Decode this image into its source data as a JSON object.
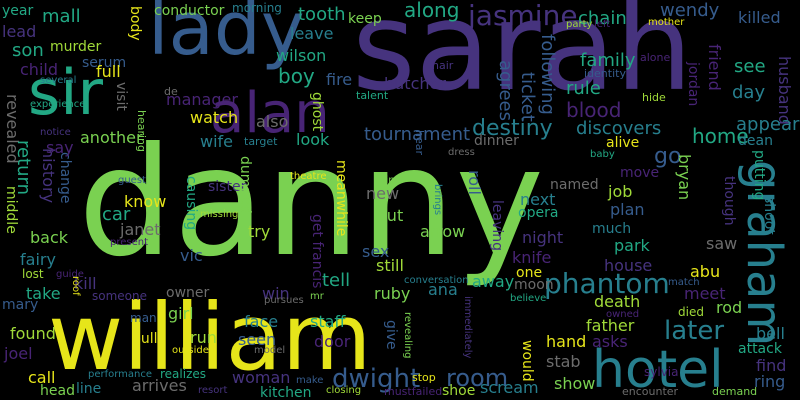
{
  "palette": {
    "green": "#7ad151",
    "yellow": "#e6e51a",
    "purple": "#46337e",
    "violet": "#482475",
    "teal": "#277f8e",
    "blue": "#365c8d",
    "seagreen": "#22a884",
    "lime": "#a0da39",
    "gray": "#6c6c6c"
  },
  "words": [
    {
      "text": "danny"
    },
    {
      "text": "sarah"
    },
    {
      "text": "william"
    },
    {
      "text": "lady"
    },
    {
      "text": "sir"
    },
    {
      "text": "alan"
    },
    {
      "text": "hotel"
    },
    {
      "text": "graham"
    },
    {
      "text": "jasmine"
    },
    {
      "text": "room"
    },
    {
      "text": "phantom"
    },
    {
      "text": "later"
    },
    {
      "text": "dwight"
    },
    {
      "text": "tournament"
    },
    {
      "text": "destiny"
    },
    {
      "text": "discovers"
    },
    {
      "text": "blood"
    },
    {
      "text": "home"
    },
    {
      "text": "go"
    },
    {
      "text": "killed"
    },
    {
      "text": "husband"
    },
    {
      "text": "appears"
    },
    {
      "text": "dean"
    },
    {
      "text": "see"
    },
    {
      "text": "day"
    },
    {
      "text": "friend"
    },
    {
      "text": "jordan"
    },
    {
      "text": "wendy"
    },
    {
      "text": "family"
    },
    {
      "text": "chain"
    },
    {
      "text": "rule"
    },
    {
      "text": "ticket"
    },
    {
      "text": "following"
    },
    {
      "text": "agrees"
    },
    {
      "text": "along"
    },
    {
      "text": "keep"
    },
    {
      "text": "tooth"
    },
    {
      "text": "leave"
    },
    {
      "text": "wilson"
    },
    {
      "text": "butcher"
    },
    {
      "text": "fire"
    },
    {
      "text": "ghost"
    },
    {
      "text": "boy"
    },
    {
      "text": "manager"
    },
    {
      "text": "watch"
    },
    {
      "text": "also"
    },
    {
      "text": "mall"
    },
    {
      "text": "conductor"
    },
    {
      "text": "morning"
    },
    {
      "text": "year"
    },
    {
      "text": "lead"
    },
    {
      "text": "serum"
    },
    {
      "text": "son"
    },
    {
      "text": "murder"
    },
    {
      "text": "child"
    },
    {
      "text": "full"
    },
    {
      "text": "revealed"
    },
    {
      "text": "another"
    },
    {
      "text": "wife"
    },
    {
      "text": "look"
    },
    {
      "text": "return"
    },
    {
      "text": "history"
    },
    {
      "text": "change"
    },
    {
      "text": "middle"
    },
    {
      "text": "say"
    },
    {
      "text": "know"
    },
    {
      "text": "car"
    },
    {
      "text": "janet"
    },
    {
      "text": "back"
    },
    {
      "text": "fairy"
    },
    {
      "text": "causing"
    },
    {
      "text": "sister"
    },
    {
      "text": "vic"
    },
    {
      "text": "try"
    },
    {
      "text": "tell"
    },
    {
      "text": "get francis"
    },
    {
      "text": "meanwhile"
    },
    {
      "text": "new"
    },
    {
      "text": "cut"
    },
    {
      "text": "next"
    },
    {
      "text": "opera"
    },
    {
      "text": "night"
    },
    {
      "text": "plan"
    },
    {
      "text": "job"
    },
    {
      "text": "move"
    },
    {
      "text": "alive"
    },
    {
      "text": "named"
    },
    {
      "text": "arrow"
    },
    {
      "text": "much"
    },
    {
      "text": "park"
    },
    {
      "text": "house"
    },
    {
      "text": "sex"
    },
    {
      "text": "still"
    },
    {
      "text": "knife"
    },
    {
      "text": "one"
    },
    {
      "text": "moon"
    },
    {
      "text": "ruby"
    },
    {
      "text": "ana"
    },
    {
      "text": "away"
    },
    {
      "text": "leaving"
    },
    {
      "text": "roll"
    },
    {
      "text": "death"
    },
    {
      "text": "meet"
    },
    {
      "text": "abu"
    },
    {
      "text": "saw"
    },
    {
      "text": "rod"
    },
    {
      "text": "bell"
    },
    {
      "text": "attack"
    },
    {
      "text": "find"
    },
    {
      "text": "ring"
    },
    {
      "text": "father"
    },
    {
      "text": "asks"
    },
    {
      "text": "hand"
    },
    {
      "text": "stab"
    },
    {
      "text": "show"
    },
    {
      "text": "scream"
    },
    {
      "text": "take"
    },
    {
      "text": "kill"
    },
    {
      "text": "mary"
    },
    {
      "text": "found"
    },
    {
      "text": "joel"
    },
    {
      "text": "call"
    },
    {
      "text": "owner"
    },
    {
      "text": "girl"
    },
    {
      "text": "face"
    },
    {
      "text": "staff"
    },
    {
      "text": "woman"
    },
    {
      "text": "seen"
    },
    {
      "text": "run"
    },
    {
      "text": "door"
    },
    {
      "text": "pull"
    },
    {
      "text": "arrives"
    },
    {
      "text": "head"
    },
    {
      "text": "line"
    },
    {
      "text": "kitchen"
    },
    {
      "text": "win"
    },
    {
      "text": "give"
    },
    {
      "text": "shoe"
    },
    {
      "text": "sylvia"
    },
    {
      "text": "would"
    },
    {
      "text": "dinner"
    },
    {
      "text": "bryan"
    },
    {
      "text": "shoot"
    },
    {
      "text": "putting"
    },
    {
      "text": "though"
    },
    {
      "text": "identity"
    },
    {
      "text": "hide"
    },
    {
      "text": "alone"
    },
    {
      "text": "body"
    },
    {
      "text": "visit"
    },
    {
      "text": "dumped"
    },
    {
      "text": "target"
    },
    {
      "text": "talent"
    },
    {
      "text": "hair"
    },
    {
      "text": "hear"
    },
    {
      "text": "party"
    },
    {
      "text": "left"
    },
    {
      "text": "mother"
    },
    {
      "text": "de"
    },
    {
      "text": "hearing"
    },
    {
      "text": "several"
    },
    {
      "text": "experience"
    },
    {
      "text": "notice"
    },
    {
      "text": "guest"
    },
    {
      "text": "missing"
    },
    {
      "text": "present"
    },
    {
      "text": "theatre"
    },
    {
      "text": "dress"
    },
    {
      "text": "final"
    },
    {
      "text": "brings"
    },
    {
      "text": "baby"
    },
    {
      "text": "someone"
    },
    {
      "text": "man"
    },
    {
      "text": "lost"
    },
    {
      "text": "guide"
    },
    {
      "text": "roof"
    },
    {
      "text": "pursues"
    },
    {
      "text": "mr"
    },
    {
      "text": "conversation"
    },
    {
      "text": "believe"
    },
    {
      "text": "immediately"
    },
    {
      "text": "match"
    },
    {
      "text": "died"
    },
    {
      "text": "owned"
    },
    {
      "text": "outside"
    },
    {
      "text": "model"
    },
    {
      "text": "revealing"
    },
    {
      "text": "performance"
    },
    {
      "text": "realizes"
    },
    {
      "text": "resort"
    },
    {
      "text": "make"
    },
    {
      "text": "closing"
    },
    {
      "text": "mustfailed"
    },
    {
      "text": "stop"
    },
    {
      "text": "encounter"
    },
    {
      "text": "demand"
    }
  ]
}
